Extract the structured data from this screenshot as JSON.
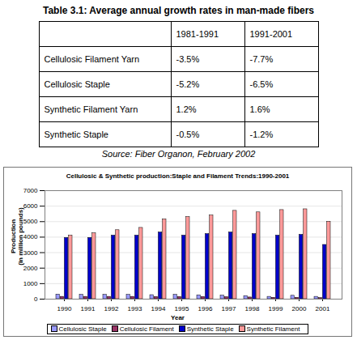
{
  "chart_data": {
    "type": "bar",
    "title": "Cellulosic & Synthetic production:Staple and Filament Trends:1990-2001",
    "xlabel": "Year",
    "ylabel": "Production\n(in million pounds)",
    "categories": [
      "1990",
      "1991",
      "1992",
      "1993",
      "1994",
      "1995",
      "1996",
      "1997",
      "1998",
      "1999",
      "2000",
      "2001"
    ],
    "series": [
      {
        "name": "Cellulosic Staple",
        "color": "#9999ff",
        "values": [
          300,
          280,
          280,
          280,
          260,
          280,
          250,
          230,
          200,
          150,
          220,
          150
        ]
      },
      {
        "name": "Cellulosic Filament",
        "color": "#993366",
        "values": [
          150,
          150,
          150,
          150,
          140,
          140,
          140,
          130,
          110,
          90,
          90,
          70
        ]
      },
      {
        "name": "Synthetic Staple",
        "color": "#0000cc",
        "values": [
          3950,
          3950,
          4100,
          4100,
          4300,
          4100,
          4200,
          4300,
          4200,
          4100,
          4150,
          3500
        ]
      },
      {
        "name": "Synthetic Filament",
        "color": "#ff9999",
        "values": [
          4100,
          4250,
          4450,
          4600,
          5150,
          5300,
          5400,
          5700,
          5600,
          5750,
          5800,
          5000
        ]
      }
    ],
    "ylim": [
      0,
      7000
    ],
    "yticks": [
      0,
      1000,
      2000,
      3000,
      4000,
      5000,
      6000,
      7000
    ],
    "grid": true,
    "legend": "bottom"
  },
  "table": {
    "title": "Table 3.1: Average annual growth rates in man-made fibers",
    "header": [
      "1981-1991",
      "1991-2001"
    ],
    "rows": [
      [
        "Cellulosic Filament Yarn",
        "-3.5%",
        "-7.7%"
      ],
      [
        "Cellulosic Staple",
        "-5.2%",
        "-6.5%"
      ],
      [
        "Synthetic Filament Yarn",
        "1.2%",
        "1.6%"
      ],
      [
        "Synthetic Staple",
        "-0.5%",
        "-1.2%"
      ]
    ],
    "source": "Source: Fiber Organon, February 2002"
  }
}
